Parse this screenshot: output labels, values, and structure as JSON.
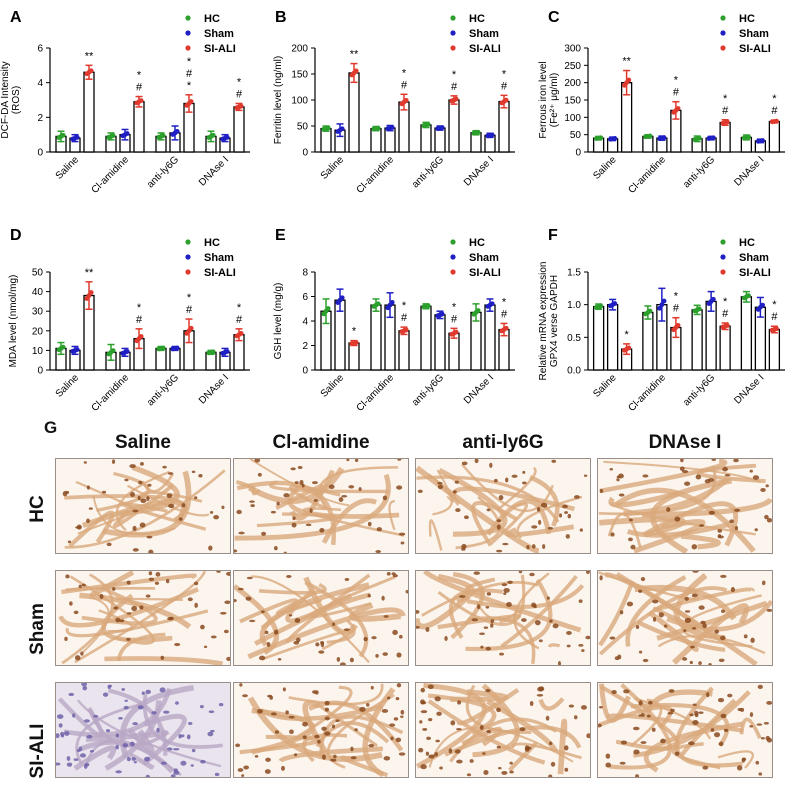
{
  "chart_data": [
    {
      "type": "bar",
      "panel": "A",
      "ylabel": [
        "DCF-DA Intensity",
        "(ROS)"
      ],
      "ylim": [
        0,
        6
      ],
      "yticks": [
        0,
        2,
        4,
        6
      ],
      "categories": [
        "Saline",
        "Cl-amidine",
        "anti-ly6G",
        "DNAse I"
      ],
      "series": [
        {
          "name": "HC",
          "values": [
            0.9,
            0.9,
            0.9,
            0.9
          ],
          "err": [
            0.3,
            0.2,
            0.2,
            0.3
          ]
        },
        {
          "name": "Sham",
          "values": [
            0.8,
            1.0,
            1.1,
            0.8
          ],
          "err": [
            0.2,
            0.3,
            0.4,
            0.2
          ]
        },
        {
          "name": "SI-ALI",
          "values": [
            4.6,
            2.9,
            2.8,
            2.6
          ],
          "err": [
            0.4,
            0.3,
            0.5,
            0.2
          ]
        }
      ],
      "annotations": [
        [
          "**"
        ],
        [
          "*",
          "#"
        ],
        [
          "*",
          "#",
          "*"
        ],
        [
          "*",
          "#"
        ]
      ]
    },
    {
      "type": "bar",
      "panel": "B",
      "ylabel": [
        "Ferritin level (ng/ml)"
      ],
      "ylim": [
        0,
        200
      ],
      "yticks": [
        0,
        50,
        100,
        150,
        200
      ],
      "categories": [
        "Saline",
        "Cl-amidine",
        "anti-ly6G",
        "DNAse I"
      ],
      "series": [
        {
          "name": "HC",
          "values": [
            45,
            45,
            52,
            37
          ],
          "err": [
            5,
            4,
            5,
            4
          ]
        },
        {
          "name": "Sham",
          "values": [
            42,
            46,
            46,
            32
          ],
          "err": [
            12,
            5,
            4,
            4
          ]
        },
        {
          "name": "SI-ALI",
          "values": [
            152,
            96,
            100,
            97
          ],
          "err": [
            18,
            15,
            8,
            12
          ]
        }
      ],
      "annotations": [
        [
          "**"
        ],
        [
          "*",
          "#"
        ],
        [
          "*",
          "#"
        ],
        [
          "*",
          "#"
        ]
      ]
    },
    {
      "type": "bar",
      "panel": "C",
      "ylabel": [
        "Ferrous iron level",
        "(Fe²⁺ μg/ml)"
      ],
      "ylim": [
        0,
        300
      ],
      "yticks": [
        0,
        50,
        100,
        150,
        200,
        250,
        300
      ],
      "categories": [
        "Saline",
        "Cl-amidine",
        "anti-ly6G",
        "DNAse I"
      ],
      "series": [
        {
          "name": "HC",
          "values": [
            40,
            45,
            38,
            42
          ],
          "err": [
            5,
            5,
            8,
            7
          ]
        },
        {
          "name": "Sham",
          "values": [
            38,
            40,
            40,
            32
          ],
          "err": [
            5,
            6,
            5,
            5
          ]
        },
        {
          "name": "SI-ALI",
          "values": [
            200,
            120,
            85,
            88
          ],
          "err": [
            35,
            25,
            8,
            4
          ]
        }
      ],
      "annotations": [
        [
          "**"
        ],
        [
          "*",
          "#"
        ],
        [
          "*",
          "#"
        ],
        [
          "*",
          "#"
        ]
      ]
    },
    {
      "type": "bar",
      "panel": "D",
      "ylabel": [
        "MDA level (nmol/mg)"
      ],
      "ylim": [
        0,
        50
      ],
      "yticks": [
        0,
        10,
        20,
        30,
        40,
        50
      ],
      "categories": [
        "Saline",
        "Cl-amidine",
        "anti-ly6G",
        "DNAse I"
      ],
      "series": [
        {
          "name": "HC",
          "values": [
            11,
            9,
            11,
            9
          ],
          "err": [
            3,
            4,
            1,
            1
          ]
        },
        {
          "name": "Sham",
          "values": [
            10,
            9,
            11,
            9
          ],
          "err": [
            2,
            2,
            1,
            2
          ]
        },
        {
          "name": "SI-ALI",
          "values": [
            38,
            16,
            20,
            18
          ],
          "err": [
            7,
            5,
            6,
            3
          ]
        }
      ],
      "annotations": [
        [
          "**"
        ],
        [
          "*",
          "#"
        ],
        [
          "*",
          "#"
        ],
        [
          "*",
          "#"
        ]
      ]
    },
    {
      "type": "bar",
      "panel": "E",
      "ylabel": [
        "GSH level (mg/g)"
      ],
      "ylim": [
        0,
        8
      ],
      "yticks": [
        0,
        2,
        4,
        6,
        8
      ],
      "categories": [
        "Saline",
        "Cl-amidine",
        "anti-ly6G",
        "DNAse I"
      ],
      "series": [
        {
          "name": "HC",
          "values": [
            4.8,
            5.3,
            5.2,
            4.7
          ],
          "err": [
            1.0,
            0.5,
            0.2,
            0.7
          ]
        },
        {
          "name": "Sham",
          "values": [
            5.7,
            5.3,
            4.5,
            5.3
          ],
          "err": [
            0.9,
            1.0,
            0.3,
            0.5
          ]
        },
        {
          "name": "SI-ALI",
          "values": [
            2.2,
            3.2,
            3.0,
            3.3
          ],
          "err": [
            0.2,
            0.3,
            0.4,
            0.5
          ]
        }
      ],
      "annotations": [
        [
          "*"
        ],
        [
          "*",
          "#"
        ],
        [
          "*",
          "#"
        ],
        [
          "*",
          "#"
        ]
      ]
    },
    {
      "type": "bar",
      "panel": "F",
      "ylabel": [
        "Relative mRNA expression",
        "GPX4 verse GAPDH"
      ],
      "ylim": [
        0,
        1.5
      ],
      "yticks": [
        0.0,
        0.5,
        1.0,
        1.5
      ],
      "ytick_labels": [
        "0.0",
        "0.5",
        "1.0",
        "1.5"
      ],
      "categories": [
        "Saline",
        "Cl-amidine",
        "anti-ly6G",
        "DNAse I"
      ],
      "series": [
        {
          "name": "HC",
          "values": [
            0.97,
            0.88,
            0.92,
            1.12
          ],
          "err": [
            0.04,
            0.1,
            0.07,
            0.08
          ]
        },
        {
          "name": "Sham",
          "values": [
            1.0,
            1.0,
            1.05,
            0.96
          ],
          "err": [
            0.08,
            0.25,
            0.15,
            0.15
          ]
        },
        {
          "name": "SI-ALI",
          "values": [
            0.32,
            0.65,
            0.67,
            0.62
          ],
          "err": [
            0.08,
            0.15,
            0.05,
            0.05
          ]
        }
      ],
      "annotations": [
        [
          "*"
        ],
        [
          "*",
          "#"
        ],
        [
          "*",
          "#"
        ],
        [
          "*",
          "#"
        ]
      ]
    }
  ],
  "colors": {
    "HC": "#2ca02c",
    "Sham": "#1f1fc4",
    "SI-ALI": "#e03a2e"
  },
  "panel_g": {
    "letter": "G",
    "columns": [
      "Saline",
      "Cl-amidine",
      "anti-ly6G",
      "DNAse I"
    ],
    "rows": [
      "HC",
      "Sham",
      "SI-ALI"
    ]
  }
}
